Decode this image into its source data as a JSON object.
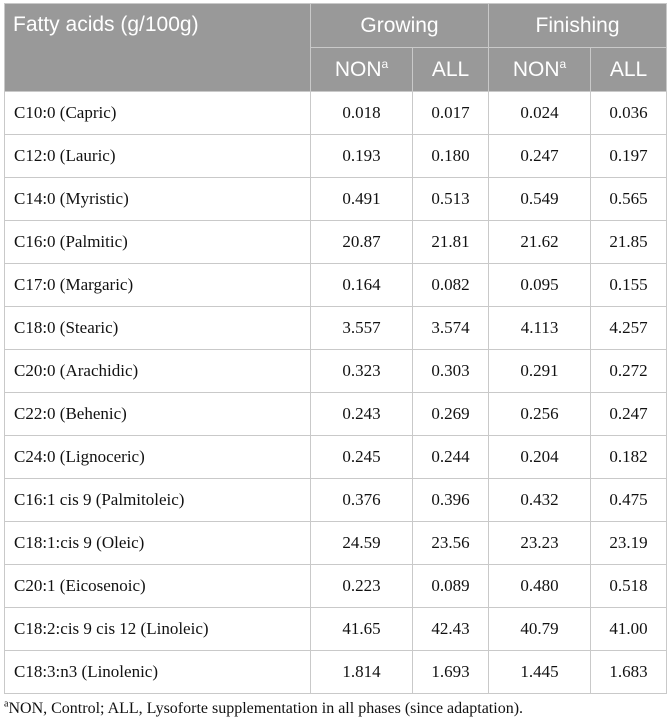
{
  "header": {
    "fatty_acids": "Fatty acids (g/100g)",
    "groups": [
      "Growing",
      "Finishing"
    ],
    "subcols": [
      {
        "label": "NON",
        "sup": "a"
      },
      {
        "label": "ALL",
        "sup": ""
      },
      {
        "label": "NON",
        "sup": "a"
      },
      {
        "label": "ALL",
        "sup": ""
      }
    ]
  },
  "rows": [
    {
      "name": "C10:0 (Capric)",
      "values": [
        "0.018",
        "0.017",
        "0.024",
        "0.036"
      ]
    },
    {
      "name": "C12:0 (Lauric)",
      "values": [
        "0.193",
        "0.180",
        "0.247",
        "0.197"
      ]
    },
    {
      "name": "C14:0 (Myristic)",
      "values": [
        "0.491",
        "0.513",
        "0.549",
        "0.565"
      ]
    },
    {
      "name": "C16:0 (Palmitic)",
      "values": [
        "20.87",
        "21.81",
        "21.62",
        "21.85"
      ]
    },
    {
      "name": "C17:0 (Margaric)",
      "values": [
        "0.164",
        "0.082",
        "0.095",
        "0.155"
      ]
    },
    {
      "name": "C18:0 (Stearic)",
      "values": [
        "3.557",
        "3.574",
        "4.113",
        "4.257"
      ]
    },
    {
      "name": "C20:0 (Arachidic)",
      "values": [
        "0.323",
        "0.303",
        "0.291",
        "0.272"
      ]
    },
    {
      "name": "C22:0 (Behenic)",
      "values": [
        "0.243",
        "0.269",
        "0.256",
        "0.247"
      ]
    },
    {
      "name": "C24:0 (Lignoceric)",
      "values": [
        "0.245",
        "0.244",
        "0.204",
        "0.182"
      ]
    },
    {
      "name": "C16:1 cis 9 (Palmitoleic)",
      "values": [
        "0.376",
        "0.396",
        "0.432",
        "0.475"
      ]
    },
    {
      "name": "C18:1:cis 9 (Oleic)",
      "values": [
        "24.59",
        "23.56",
        "23.23",
        "23.19"
      ]
    },
    {
      "name": "C20:1 (Eicosenoic)",
      "values": [
        "0.223",
        "0.089",
        "0.480",
        "0.518"
      ]
    },
    {
      "name": "C18:2:cis 9 cis 12 (Linoleic)",
      "values": [
        "41.65",
        "42.43",
        "40.79",
        "41.00"
      ]
    },
    {
      "name": "C18:3:n3 (Linolenic)",
      "values": [
        "1.814",
        "1.693",
        "1.445",
        "1.683"
      ]
    }
  ],
  "footnote": {
    "sup": "a",
    "text": "NON, Control; ALL, Lysoforte supplementation in all phases (since adaptation)."
  }
}
